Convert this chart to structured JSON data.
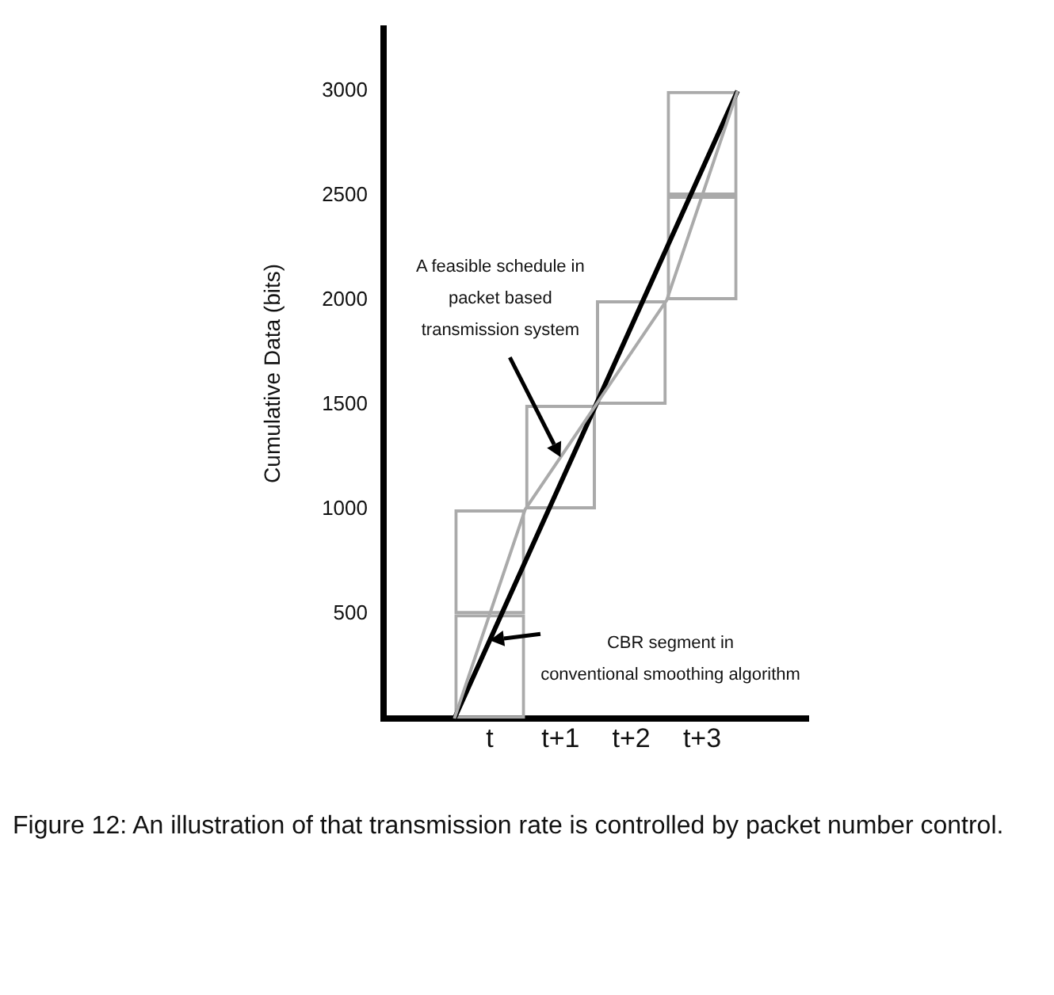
{
  "chart_data": {
    "type": "bar",
    "ylabel": "Cumulative Data (bits)",
    "categories": [
      null,
      null,
      null,
      "t",
      null,
      "t+1",
      null,
      "t+2",
      null,
      "t+3",
      null,
      null,
      null
    ],
    "series": [
      {
        "color": "#aaaaaa",
        "base": [
          null,
          null,
          null,
          0,
          null,
          1000,
          null,
          1500,
          null,
          2000,
          null,
          null,
          null
        ],
        "values": [
          null,
          null,
          null,
          500,
          null,
          500,
          null,
          500,
          null,
          500,
          null,
          null,
          null
        ]
      },
      {
        "color": "#aaaaaa",
        "base": [
          null,
          null,
          null,
          500,
          null,
          null,
          null,
          null,
          null,
          2500,
          null,
          null,
          null
        ],
        "values": [
          null,
          null,
          null,
          500,
          null,
          null,
          null,
          null,
          null,
          500,
          null,
          null,
          null
        ]
      },
      {
        "type": "line",
        "color": "#aaaaaa",
        "values": [
          null,
          null,
          0,
          null,
          1000,
          null,
          1500,
          null,
          2000,
          null,
          3000,
          null,
          null
        ]
      },
      {
        "type": "line",
        "color": "#000000",
        "values": [
          null,
          null,
          0,
          375,
          null,
          null,
          null,
          null,
          null,
          null,
          3000,
          null,
          null
        ]
      }
    ],
    "ylim": [
      0,
      3300
    ],
    "yticks": [
      500,
      1000,
      1500,
      2000,
      2500,
      3000
    ],
    "grid": false,
    "legend": false,
    "marker": "none",
    "line_style": "solid",
    "annotations": [
      {
        "text": "A feasible schedule in\npacket based\ntransmission system",
        "x": "t+1",
        "y": 1250
      },
      {
        "text": "CBR segment in\nconventional smoothing algorithm",
        "x": "t",
        "y": 375
      },
      "Figure 12: An illustration of that transmission rate is controlled by packet number control."
    ]
  }
}
